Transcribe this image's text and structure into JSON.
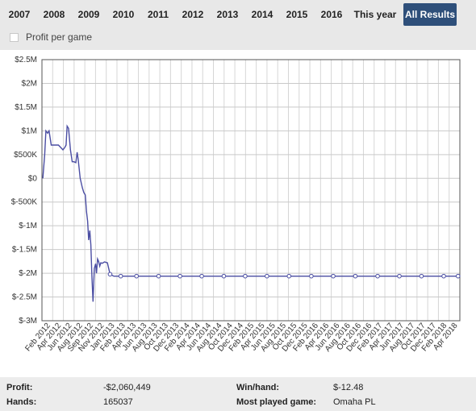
{
  "tabs": [
    {
      "label": "2007",
      "active": false
    },
    {
      "label": "2008",
      "active": false
    },
    {
      "label": "2009",
      "active": false
    },
    {
      "label": "2010",
      "active": false
    },
    {
      "label": "2011",
      "active": false
    },
    {
      "label": "2012",
      "active": false
    },
    {
      "label": "2013",
      "active": false
    },
    {
      "label": "2014",
      "active": false
    },
    {
      "label": "2015",
      "active": false
    },
    {
      "label": "2016",
      "active": false
    },
    {
      "label": "This year",
      "active": false
    },
    {
      "label": "All Results",
      "active": true
    }
  ],
  "profit_per_game": {
    "label": "Profit per game",
    "checked": false
  },
  "chart_data": {
    "type": "line",
    "title": "",
    "xlabel": "",
    "ylabel": "",
    "line_color": "#4b4ea3",
    "grid": true,
    "ylim": [
      -3000000,
      2500000
    ],
    "y_ticks": [
      {
        "value": 2500000,
        "label": "$2.5M"
      },
      {
        "value": 2000000,
        "label": "$2M"
      },
      {
        "value": 1500000,
        "label": "$1.5M"
      },
      {
        "value": 1000000,
        "label": "$1M"
      },
      {
        "value": 500000,
        "label": "$500K"
      },
      {
        "value": 0,
        "label": "$0"
      },
      {
        "value": -500000,
        "label": "$-500K"
      },
      {
        "value": -1000000,
        "label": "$-1M"
      },
      {
        "value": -1500000,
        "label": "$-1.5M"
      },
      {
        "value": -2000000,
        "label": "$-2M"
      },
      {
        "value": -2500000,
        "label": "$-2.5M"
      },
      {
        "value": -3000000,
        "label": "$-3M"
      }
    ],
    "x_ticks": [
      "Feb 2012",
      "Apr 2012",
      "Jun 2012",
      "Aug 2012",
      "Sep 2012",
      "Nov 2012",
      "Jan 2013",
      "Feb 2013",
      "Apr 2013",
      "Jun 2013",
      "Aug 2013",
      "Oct 2013",
      "Dec 2013",
      "Feb 2014",
      "Apr 2014",
      "Jun 2014",
      "Aug 2014",
      "Oct 2014",
      "Dec 2014",
      "Feb 2015",
      "Apr 2015",
      "Jun 2015",
      "Aug 2015",
      "Oct 2015",
      "Dec 2015",
      "Feb 2016",
      "Apr 2016",
      "Jun 2016",
      "Aug 2016",
      "Oct 2016",
      "Dec 2016",
      "Feb 2017",
      "Apr 2017",
      "Jun 2017",
      "Aug 2017",
      "Oct 2017",
      "Dec 2017",
      "Feb 2018",
      "Apr 2018"
    ],
    "x": [
      "2012-01-15",
      "2012-01-25",
      "2012-02-01",
      "2012-02-10",
      "2012-02-18",
      "2012-03-01",
      "2012-03-15",
      "2012-04-10",
      "2012-05-05",
      "2012-05-15",
      "2012-05-22",
      "2012-05-28",
      "2012-06-05",
      "2012-06-15",
      "2012-06-25",
      "2012-07-05",
      "2012-07-15",
      "2012-07-22",
      "2012-07-28",
      "2012-08-08",
      "2012-08-20",
      "2012-08-28",
      "2012-09-05",
      "2012-09-12",
      "2012-09-18",
      "2012-09-24",
      "2012-09-30",
      "2012-10-06",
      "2012-10-12",
      "2012-10-18",
      "2012-10-25",
      "2012-11-01",
      "2012-11-06",
      "2012-11-12",
      "2012-11-18",
      "2012-11-24",
      "2012-11-30",
      "2012-12-08",
      "2012-12-20",
      "2013-01-05",
      "2013-01-20",
      "2013-02-10",
      "2013-03-20",
      "2013-06-15",
      "2013-10-15",
      "2014-02-10",
      "2014-06-10",
      "2014-10-10",
      "2015-02-05",
      "2015-06-05",
      "2015-10-05",
      "2016-02-05",
      "2016-06-05",
      "2016-10-05",
      "2017-02-05",
      "2017-06-05",
      "2017-10-05",
      "2018-02-05",
      "2018-04-25"
    ],
    "values": [
      0,
      500000,
      1000000,
      950000,
      1000000,
      700000,
      700000,
      700000,
      600000,
      650000,
      700000,
      1100000,
      1050000,
      600000,
      350000,
      350000,
      330000,
      550000,
      400000,
      0,
      -200000,
      -300000,
      -350000,
      -700000,
      -900000,
      -1300000,
      -1100000,
      -1400000,
      -2100000,
      -2600000,
      -1900000,
      -1800000,
      -2000000,
      -1700000,
      -1750000,
      -1850000,
      -1780000,
      -1790000,
      -1760000,
      -1780000,
      -2020000,
      -2060449,
      -2060449,
      -2060449,
      -2060449,
      -2060449,
      -2060449,
      -2060449,
      -2060449,
      -2060449,
      -2060449,
      -2060449,
      -2060449,
      -2060449,
      -2060449,
      -2060449,
      -2060449,
      -2060449,
      -2060449
    ],
    "markers": [
      "2013-01-20",
      "2013-03-20",
      "2013-06-15",
      "2013-10-15",
      "2014-02-10",
      "2014-06-10",
      "2014-10-10",
      "2015-02-05",
      "2015-06-05",
      "2015-10-05",
      "2016-02-05",
      "2016-06-05",
      "2016-10-05",
      "2017-02-05",
      "2017-06-05",
      "2017-10-05",
      "2018-02-05",
      "2018-04-25"
    ]
  },
  "stats": {
    "profit_label": "Profit:",
    "profit_value": "-$2,060,449",
    "hands_label": "Hands:",
    "hands_value": "165037",
    "winhand_label": "Win/hand:",
    "winhand_value": "$-12.48",
    "game_label": "Most played game:",
    "game_value": "Omaha PL"
  }
}
